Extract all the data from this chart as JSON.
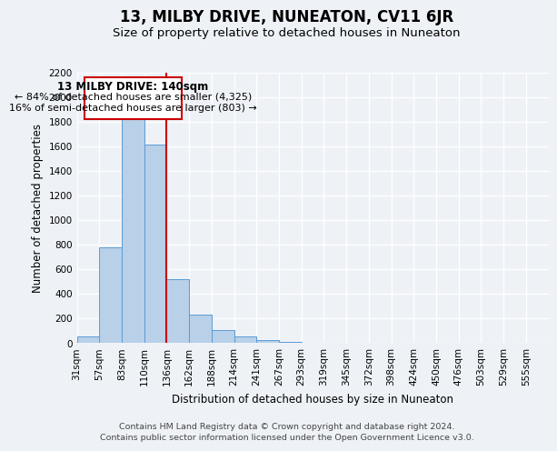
{
  "title": "13, MILBY DRIVE, NUNEATON, CV11 6JR",
  "subtitle": "Size of property relative to detached houses in Nuneaton",
  "xlabel": "Distribution of detached houses by size in Nuneaton",
  "ylabel": "Number of detached properties",
  "bar_values": [
    50,
    775,
    1825,
    1610,
    515,
    230,
    105,
    55,
    25,
    10,
    0,
    0,
    0,
    0,
    0,
    0,
    0,
    0,
    0,
    0,
    0
  ],
  "bar_labels": [
    "31sqm",
    "57sqm",
    "83sqm",
    "110sqm",
    "136sqm",
    "162sqm",
    "188sqm",
    "214sqm",
    "241sqm",
    "267sqm",
    "293sqm",
    "319sqm",
    "345sqm",
    "372sqm",
    "398sqm",
    "424sqm",
    "450sqm",
    "476sqm",
    "503sqm",
    "529sqm",
    "555sqm"
  ],
  "bar_color": "#b8d0e8",
  "bar_edge_color": "#5b9bd5",
  "vline_color": "#cc0000",
  "annotation_title": "13 MILBY DRIVE: 140sqm",
  "annotation_line1": "← 84% of detached houses are smaller (4,325)",
  "annotation_line2": "16% of semi-detached houses are larger (803) →",
  "annotation_box_edge": "#cc0000",
  "ylim": [
    0,
    2200
  ],
  "yticks": [
    0,
    200,
    400,
    600,
    800,
    1000,
    1200,
    1400,
    1600,
    1800,
    2000,
    2200
  ],
  "footer_line1": "Contains HM Land Registry data © Crown copyright and database right 2024.",
  "footer_line2": "Contains public sector information licensed under the Open Government Licence v3.0.",
  "background_color": "#eef2f7",
  "plot_bg_color": "#eef2f7",
  "grid_color": "#ffffff",
  "title_fontsize": 12,
  "subtitle_fontsize": 9.5,
  "axis_label_fontsize": 8.5,
  "tick_fontsize": 7.5,
  "footer_fontsize": 6.8
}
